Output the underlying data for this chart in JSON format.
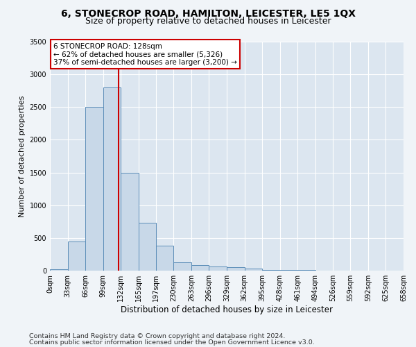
{
  "title1": "6, STONECROP ROAD, HAMILTON, LEICESTER, LE5 1QX",
  "title2": "Size of property relative to detached houses in Leicester",
  "xlabel": "Distribution of detached houses by size in Leicester",
  "ylabel": "Number of detached properties",
  "bar_color": "#c8d8e8",
  "bar_edge_color": "#5b8db8",
  "annotation_box_color": "#ffffff",
  "annotation_border_color": "#cc0000",
  "vline_color": "#cc0000",
  "background_color": "#dce6f0",
  "grid_color": "#ffffff",
  "fig_background": "#f0f4f8",
  "bin_edges": [
    0,
    33,
    66,
    99,
    132,
    165,
    197,
    230,
    263,
    296,
    329,
    362,
    395,
    428,
    461,
    494,
    526,
    559,
    592,
    625,
    658
  ],
  "bar_heights": [
    20,
    450,
    2500,
    2800,
    1500,
    730,
    380,
    130,
    80,
    60,
    55,
    30,
    15,
    10,
    8,
    5,
    3,
    2,
    1,
    1
  ],
  "property_size": 128,
  "annotation_line1": "6 STONECROP ROAD: 128sqm",
  "annotation_line2": "← 62% of detached houses are smaller (5,326)",
  "annotation_line3": "37% of semi-detached houses are larger (3,200) →",
  "footer1": "Contains HM Land Registry data © Crown copyright and database right 2024.",
  "footer2": "Contains public sector information licensed under the Open Government Licence v3.0.",
  "ylim": [
    0,
    3500
  ],
  "yticks": [
    0,
    500,
    1000,
    1500,
    2000,
    2500,
    3000,
    3500
  ],
  "title1_fontsize": 10,
  "title2_fontsize": 9,
  "annotation_fontsize": 7.5,
  "tick_fontsize": 7,
  "ylabel_fontsize": 8,
  "xlabel_fontsize": 8.5,
  "footer_fontsize": 6.8
}
